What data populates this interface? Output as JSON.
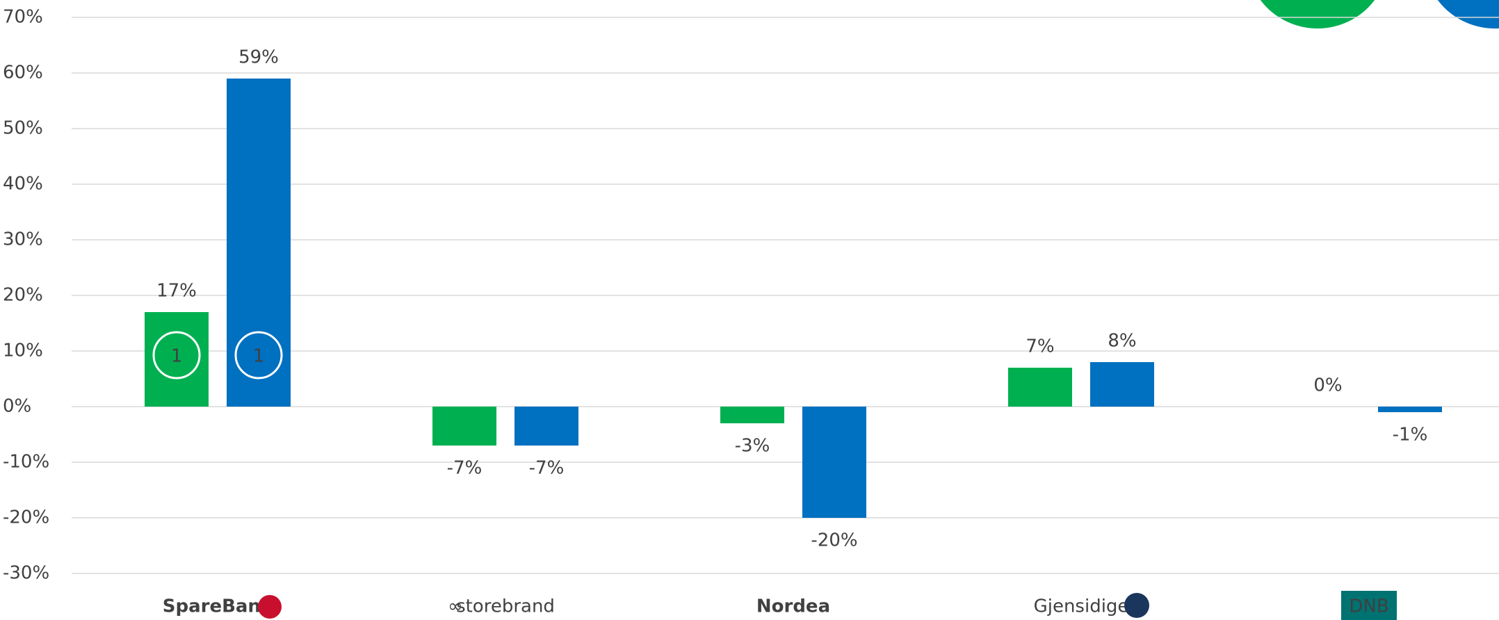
{
  "chart_data": {
    "type": "bar",
    "categories": [
      "SpareBank",
      "storebrand",
      "Nordea",
      "Gjensidige",
      "DNB"
    ],
    "series": [
      {
        "color": "#00b050",
        "values": [
          17,
          -7,
          -3,
          7,
          0
        ],
        "value_labels": [
          "17%",
          "-7%",
          "-3%",
          "7%",
          "0%"
        ]
      },
      {
        "color": "#0070c0",
        "values": [
          59,
          -7,
          -20,
          8,
          -1
        ],
        "value_labels": [
          "59%",
          "-7%",
          "-20%",
          "8%",
          "-1%"
        ]
      }
    ],
    "annotations": [
      "1",
      "1"
    ],
    "ylim": [
      -30,
      70
    ],
    "yticks": [
      {
        "value": -30,
        "label": "-30%"
      },
      {
        "value": -20,
        "label": "-20%"
      },
      {
        "value": -10,
        "label": "-10%"
      },
      {
        "value": 0,
        "label": "0%"
      },
      {
        "value": 10,
        "label": "10%"
      },
      {
        "value": 20,
        "label": "20%"
      },
      {
        "value": 30,
        "label": "30%"
      },
      {
        "value": 40,
        "label": "40%"
      },
      {
        "value": 50,
        "label": "50%"
      },
      {
        "value": 60,
        "label": "60%"
      },
      {
        "value": 70,
        "label": "70%"
      }
    ],
    "grid": true
  }
}
